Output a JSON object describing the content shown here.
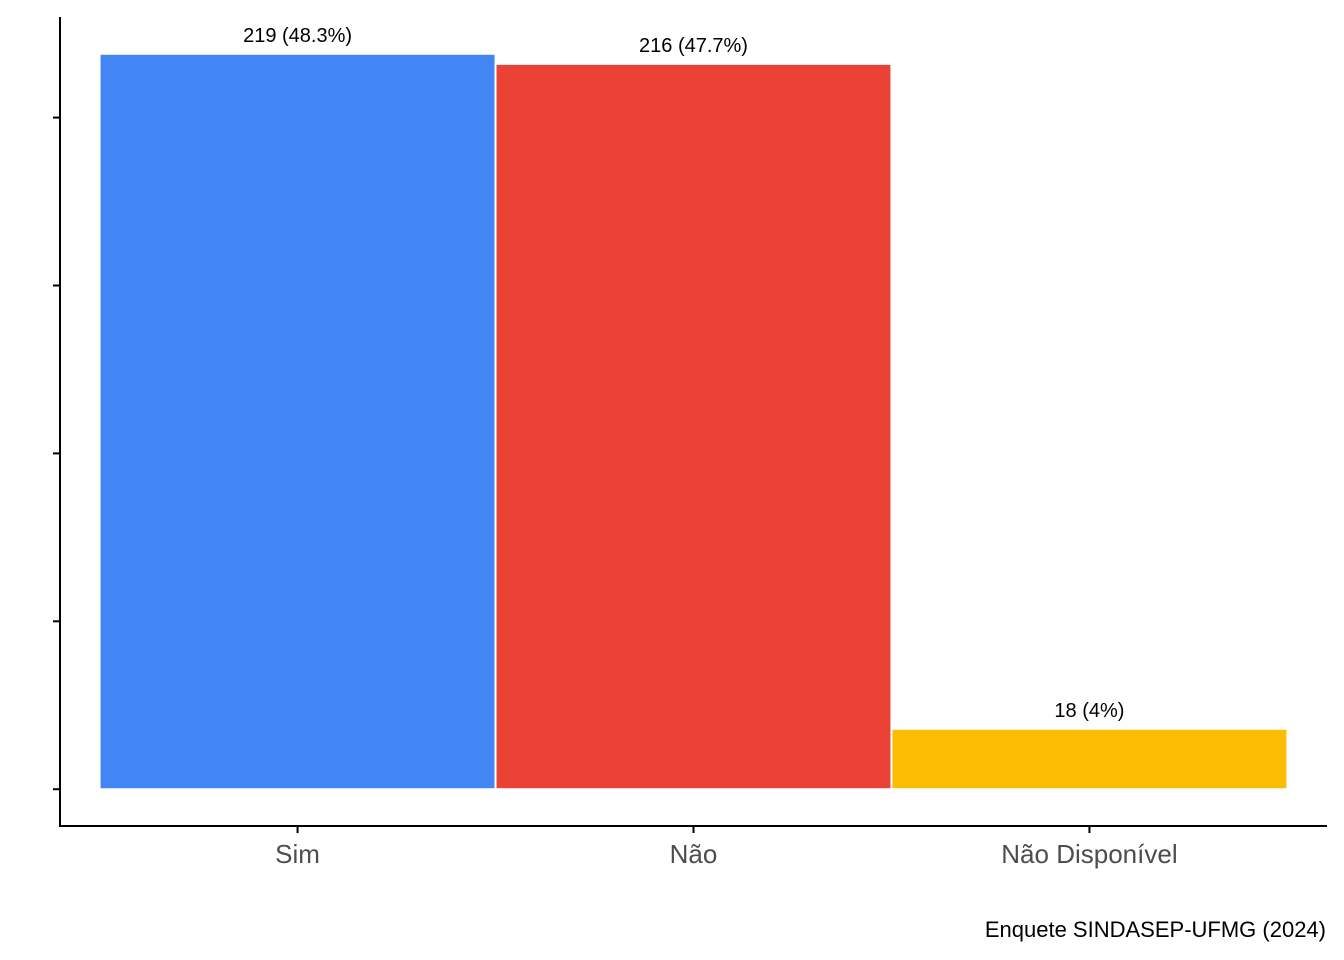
{
  "chart_data": {
    "type": "bar",
    "categories": [
      "Sim",
      "Não",
      "Não Disponível"
    ],
    "values": [
      219,
      216,
      18
    ],
    "value_labels": [
      "219 (48.3%)",
      "216 (47.7%)",
      "18 (4%)"
    ],
    "colors": [
      "#4285f4",
      "#ea4335",
      "#fbbc04"
    ],
    "ylim": [
      -10.95,
      229.95
    ],
    "yticks": [
      0,
      50,
      100,
      150,
      200
    ],
    "caption": "Enquete SINDASEP-UFMG (2024)",
    "grid": false
  }
}
